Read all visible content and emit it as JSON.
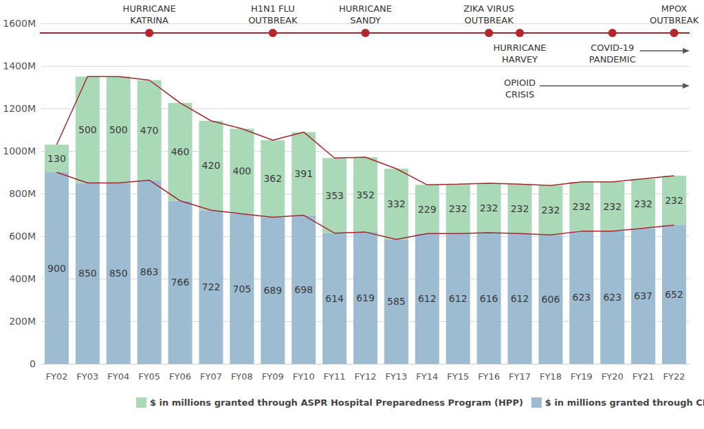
{
  "chart_data": {
    "type": "bar",
    "stacked": true,
    "data_labels": true,
    "grid": true,
    "legend": "bottom left",
    "categories": [
      "FY02",
      "FY03",
      "FY04",
      "FY05",
      "FY06",
      "FY07",
      "FY08",
      "FY09",
      "FY10",
      "FY11",
      "FY12",
      "FY13",
      "FY14",
      "FY15",
      "FY16",
      "FY17",
      "FY18",
      "FY19",
      "FY20",
      "FY21",
      "FY22"
    ],
    "series": [
      {
        "name": "$ in millions granted through CDC Public Health Emergency Preparedness (PHEP)",
        "color": "#9dbbd1",
        "values": [
          900,
          850,
          850,
          863,
          766,
          722,
          705,
          689,
          698,
          614,
          619,
          585,
          612,
          612,
          616,
          612,
          606,
          623,
          623,
          637,
          652
        ]
      },
      {
        "name": "$ in millions granted through ASPR Hospital Preparedness Program (HPP)",
        "color": "#aad9b7",
        "values": [
          130,
          500,
          500,
          470,
          460,
          420,
          400,
          362,
          391,
          353,
          352,
          332,
          229,
          232,
          232,
          232,
          232,
          232,
          232,
          232,
          232
        ]
      }
    ],
    "ylim": [
      0,
      1600
    ],
    "yticks": [
      0,
      {
        "value": 200,
        "label": "200M"
      },
      {
        "value": 400,
        "label": "400M"
      },
      {
        "value": 600,
        "label": "600M"
      },
      {
        "value": 800,
        "label": "800M"
      },
      {
        "value": 1000,
        "label": "1000M"
      },
      {
        "value": 1200,
        "label": "1200M"
      },
      {
        "value": 1400,
        "label": "1400M"
      },
      {
        "value": 1600,
        "label": "1600M"
      }
    ],
    "annotations": [
      {
        "text": "HURRICANE\nKATRINA",
        "x": "FY05",
        "marker": "circle",
        "position": "above"
      },
      {
        "text": "H1N1 FLU\nOUTBREAK",
        "x": "FY09",
        "marker": "circle",
        "position": "above"
      },
      {
        "text": "HURRICANE\nSANDY",
        "x": "FY12",
        "marker": "circle",
        "position": "above"
      },
      {
        "text": "ZIKA VIRUS\nOUTBREAK",
        "x": "FY16",
        "marker": "circle",
        "position": "above"
      },
      {
        "text": "HURRICANE\nHARVEY",
        "x": "FY17",
        "marker": "circle",
        "position": "below"
      },
      {
        "text": "COVID-19\nPANDEMIC",
        "x": "FY20",
        "marker": "circle",
        "position": "below",
        "line_style": "arrow"
      },
      {
        "text": "MPOX\nOUTBREAK",
        "x": "FY22",
        "marker": "circle",
        "position": "above"
      },
      {
        "text": "OPIOID\nCRISIS",
        "x": "FY17",
        "marker": "none",
        "position": "below",
        "line_style": "arrow"
      }
    ]
  }
}
